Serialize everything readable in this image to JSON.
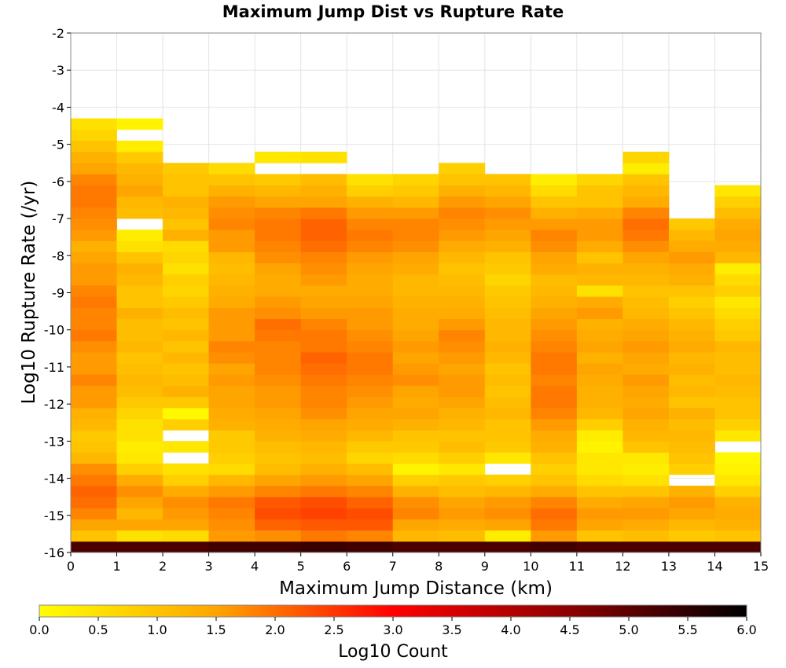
{
  "chart_data": {
    "type": "heatmap",
    "title": "Maximum Jump Dist vs Rupture Rate",
    "xlabel": "Maximum Jump Distance (km)",
    "ylabel": "Log10 Rupture Rate (/yr)",
    "xlim": [
      0,
      15
    ],
    "ylim": [
      -16,
      -2
    ],
    "x_ticks": [
      0,
      1,
      2,
      3,
      4,
      5,
      6,
      7,
      8,
      9,
      10,
      11,
      12,
      13,
      14,
      15
    ],
    "y_ticks": [
      -2,
      -3,
      -4,
      -5,
      -6,
      -7,
      -8,
      -9,
      -10,
      -11,
      -12,
      -13,
      -14,
      -15,
      -16
    ],
    "x_bin_width": 1,
    "y_bin_height": 0.3,
    "y_bin_start": -16,
    "grid": true,
    "colorbar": {
      "label": "Log10 Count",
      "range": [
        0,
        6
      ],
      "ticks": [
        "0.0",
        "0.5",
        "1.0",
        "1.5",
        "2.0",
        "2.5",
        "3.0",
        "3.5",
        "4.0",
        "4.5",
        "5.0",
        "5.5",
        "6.0"
      ],
      "colors": [
        "#ffff00",
        "#ffa500",
        "#ff0000",
        "#8b0000",
        "#000000"
      ],
      "placement": "bottom"
    },
    "columns": [
      {
        "x": 0,
        "ymax": -3.3,
        "values": [
          5.2,
          1.0,
          1.5,
          1.8,
          2.0,
          2.1,
          1.9,
          1.7,
          1.2,
          1.0,
          0.9,
          1.2,
          1.3,
          1.6,
          1.6,
          1.8,
          1.6,
          1.6,
          1.7,
          1.9,
          1.8,
          1.8,
          1.9,
          1.8,
          1.6,
          1.6,
          1.5,
          1.3,
          1.6,
          1.7,
          1.8,
          1.9,
          1.9,
          1.8,
          1.5,
          1.3,
          1.0,
          0.7,
          0.5
        ]
      },
      {
        "x": 1,
        "ymax": -3.9,
        "values": [
          5.2,
          0.5,
          1.5,
          1.2,
          1.5,
          1.7,
          1.4,
          0.8,
          0.4,
          0.3,
          0.5,
          0.5,
          0.7,
          0.9,
          1.1,
          1.2,
          1.1,
          1.0,
          1.2,
          1.1,
          1.1,
          1.3,
          1.0,
          1.0,
          1.2,
          1.3,
          1.0,
          0.5,
          0.3,
          null,
          1.1,
          1.2,
          1.5,
          1.3,
          1.2,
          0.9,
          0.3,
          null,
          0.2
        ]
      },
      {
        "x": 2,
        "ymax": -4.7,
        "values": [
          5.2,
          0.6,
          1.5,
          1.6,
          1.7,
          1.4,
          0.8,
          0.5,
          null,
          0.4,
          null,
          0.8,
          0.1,
          0.9,
          1.3,
          1.1,
          1.0,
          1.2,
          1.0,
          1.2,
          1.0,
          1.1,
          0.9,
          0.7,
          0.8,
          0.5,
          0.7,
          0.6,
          1.3,
          1.0,
          1.2,
          1.3,
          1.0,
          1.0,
          0.9
        ]
      },
      {
        "x": 3,
        "ymax": -3.9,
        "values": [
          5.3,
          1.6,
          1.7,
          1.8,
          1.9,
          1.6,
          1.2,
          0.6,
          0.8,
          0.9,
          0.9,
          1.3,
          1.4,
          1.5,
          1.5,
          1.6,
          1.5,
          1.7,
          1.8,
          1.6,
          1.6,
          1.6,
          1.4,
          1.3,
          1.2,
          1.1,
          1.2,
          1.6,
          1.6,
          1.8,
          1.7,
          1.6,
          1.3,
          1.0,
          0.6
        ]
      },
      {
        "x": 4,
        "ymax": -3.6,
        "values": [
          5.3,
          1.7,
          2.1,
          2.3,
          2.2,
          1.8,
          1.5,
          1.1,
          1.0,
          1.1,
          1.3,
          1.4,
          1.5,
          1.6,
          1.6,
          1.7,
          1.8,
          1.8,
          1.8,
          1.9,
          2.0,
          1.7,
          1.6,
          1.4,
          1.4,
          1.5,
          1.7,
          1.8,
          1.9,
          1.9,
          1.8,
          1.5,
          1.2,
          0.9,
          null,
          0.4
        ]
      },
      {
        "x": 5,
        "ymax": -3.6,
        "values": [
          5.4,
          1.9,
          2.2,
          2.4,
          2.3,
          1.9,
          1.6,
          1.3,
          1.1,
          1.2,
          1.4,
          1.5,
          1.7,
          1.8,
          1.8,
          1.9,
          2.0,
          2.1,
          1.9,
          1.9,
          1.8,
          1.6,
          1.5,
          1.4,
          1.6,
          1.7,
          1.8,
          2.0,
          2.1,
          2.1,
          1.9,
          1.5,
          1.3,
          1.1,
          null,
          0.5
        ]
      },
      {
        "x": 6,
        "ymax": -3.9,
        "values": [
          5.3,
          1.8,
          2.2,
          2.3,
          2.1,
          1.8,
          1.5,
          1.1,
          0.7,
          0.9,
          1.2,
          1.4,
          1.5,
          1.6,
          1.7,
          1.8,
          1.9,
          1.9,
          1.8,
          1.7,
          1.6,
          1.6,
          1.5,
          1.4,
          1.4,
          1.5,
          1.6,
          1.8,
          1.9,
          1.8,
          1.6,
          1.3,
          0.8,
          0.5
        ]
      },
      {
        "x": 7,
        "ymax": -4.2,
        "values": [
          5.2,
          1.2,
          1.5,
          1.8,
          1.7,
          1.3,
          0.8,
          0.2,
          0.6,
          0.9,
          1.0,
          1.3,
          1.5,
          1.4,
          1.5,
          1.7,
          1.6,
          1.5,
          1.6,
          1.5,
          1.4,
          1.4,
          1.3,
          1.2,
          1.2,
          1.4,
          1.5,
          1.7,
          1.8,
          1.8,
          1.6,
          1.2,
          0.9,
          0.7
        ]
      },
      {
        "x": 8,
        "ymax": -4.2,
        "values": [
          5.2,
          1.1,
          1.4,
          1.6,
          1.5,
          1.1,
          0.9,
          0.4,
          0.8,
          1.1,
          1.0,
          1.2,
          1.3,
          1.5,
          1.6,
          1.6,
          1.5,
          1.6,
          1.7,
          1.8,
          1.6,
          1.4,
          1.3,
          1.2,
          1.1,
          1.0,
          1.2,
          1.4,
          1.6,
          1.7,
          1.8,
          1.6,
          1.3,
          1.0,
          0.8
        ]
      },
      {
        "x": 9,
        "ymax": -4.4,
        "values": [
          5.2,
          0.3,
          1.5,
          1.7,
          1.6,
          1.2,
          0.8,
          null,
          0.4,
          0.9,
          1.0,
          1.0,
          1.2,
          1.1,
          1.0,
          1.1,
          1.0,
          1.2,
          1.3,
          1.2,
          1.2,
          1.1,
          1.0,
          0.9,
          0.7,
          0.9,
          1.0,
          1.3,
          1.5,
          1.6,
          1.7,
          1.5,
          1.2,
          1.0
        ]
      },
      {
        "x": 10,
        "ymax": -4.2,
        "values": [
          5.3,
          1.6,
          1.9,
          2.0,
          1.8,
          1.4,
          1.0,
          0.8,
          1.0,
          1.3,
          1.4,
          1.6,
          1.8,
          1.9,
          1.9,
          1.8,
          1.9,
          1.9,
          1.8,
          1.7,
          1.6,
          1.5,
          1.3,
          1.2,
          1.1,
          1.4,
          1.5,
          1.7,
          1.8,
          1.6,
          1.3,
          1.0,
          0.6,
          0.3
        ]
      },
      {
        "x": 11,
        "ymax": -4.4,
        "values": [
          5.2,
          1.0,
          1.5,
          1.6,
          1.4,
          1.0,
          0.6,
          0.4,
          0.4,
          0.2,
          0.3,
          0.8,
          1.2,
          1.3,
          1.3,
          1.4,
          1.5,
          1.3,
          1.5,
          1.4,
          1.3,
          1.6,
          1.4,
          0.5,
          1.2,
          1.3,
          1.0,
          1.4,
          1.6,
          1.6,
          1.4,
          1.0,
          1.0,
          0.7
        ]
      },
      {
        "x": 12,
        "ymax": -3.9,
        "values": [
          5.2,
          1.1,
          1.4,
          1.6,
          1.5,
          1.0,
          0.5,
          0.3,
          0.4,
          1.0,
          1.2,
          1.3,
          1.5,
          1.4,
          1.5,
          1.6,
          1.4,
          1.5,
          1.6,
          1.5,
          1.4,
          1.2,
          1.1,
          1.0,
          1.2,
          1.3,
          1.5,
          1.7,
          1.9,
          2.0,
          1.8,
          1.4,
          1.2,
          1.0,
          0.3,
          0.7
        ]
      },
      {
        "x": 13,
        "ymax": -4.7,
        "values": [
          5.2,
          0.9,
          1.2,
          1.5,
          1.6,
          1.3,
          null,
          0.8,
          1.0,
          1.1,
          1.2,
          1.1,
          1.3,
          1.0,
          1.2,
          1.1,
          1.3,
          1.2,
          1.4,
          1.3,
          1.2,
          1.0,
          0.8,
          1.0,
          1.3,
          1.4,
          1.6,
          1.4,
          1.2,
          0.9
        ]
      },
      {
        "x": 14,
        "ymax": -4.4,
        "values": [
          5.2,
          1.0,
          1.3,
          1.4,
          1.3,
          0.8,
          0.4,
          0.2,
          0.1,
          null,
          0.4,
          0.8,
          1.0,
          1.0,
          1.1,
          1.2,
          1.1,
          1.1,
          1.2,
          0.9,
          0.8,
          0.6,
          0.4,
          0.8,
          0.6,
          0.3,
          1.2,
          1.4,
          1.5,
          1.4,
          1.1,
          0.8,
          0.4
        ]
      }
    ]
  }
}
